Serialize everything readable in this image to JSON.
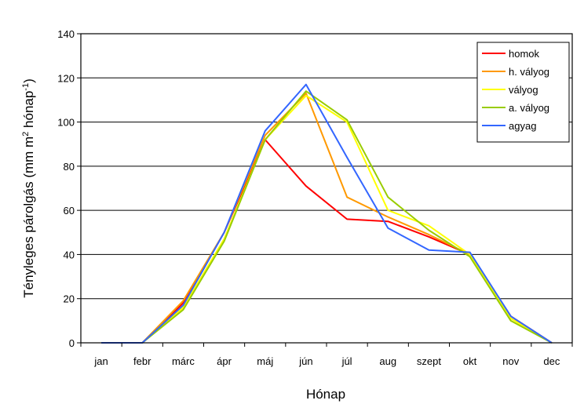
{
  "chart_data": {
    "type": "line",
    "xlabel": "Hónap",
    "ylabel_main": "Tényleges párolgás (mm m",
    "ylabel_sup1": "2",
    "ylabel_mid": " hónap",
    "ylabel_sup2": "-1",
    "ylabel_end": ")",
    "categories": [
      "jan",
      "febr",
      "márc",
      "ápr",
      "máj",
      "jún",
      "júl",
      "aug",
      "szept",
      "okt",
      "nov",
      "dec"
    ],
    "ylim": [
      0,
      140
    ],
    "yticks": [
      0,
      20,
      40,
      60,
      80,
      100,
      120,
      140
    ],
    "grid": true,
    "legend_position": "top-right",
    "series": [
      {
        "name": "homok",
        "color": "#ff0000",
        "values": [
          0,
          0,
          18,
          50,
          92,
          71,
          56,
          55,
          48,
          40,
          12,
          0
        ]
      },
      {
        "name": "h. vályog",
        "color": "#ff9900",
        "values": [
          0,
          0,
          19,
          50,
          94,
          113,
          66,
          57,
          49,
          40,
          12,
          0
        ]
      },
      {
        "name": "vályog",
        "color": "#ffff00",
        "values": [
          0,
          0,
          16,
          47,
          92,
          112,
          100,
          60,
          53,
          40,
          11,
          0
        ]
      },
      {
        "name": "a. vályog",
        "color": "#99cc00",
        "values": [
          0,
          0,
          15,
          46,
          92,
          114,
          101,
          66,
          51,
          39,
          10,
          0
        ]
      },
      {
        "name": "agyag",
        "color": "#3366ff",
        "values": [
          0,
          0,
          17,
          50,
          96,
          117,
          84,
          52,
          42,
          41,
          12,
          0
        ]
      }
    ]
  }
}
